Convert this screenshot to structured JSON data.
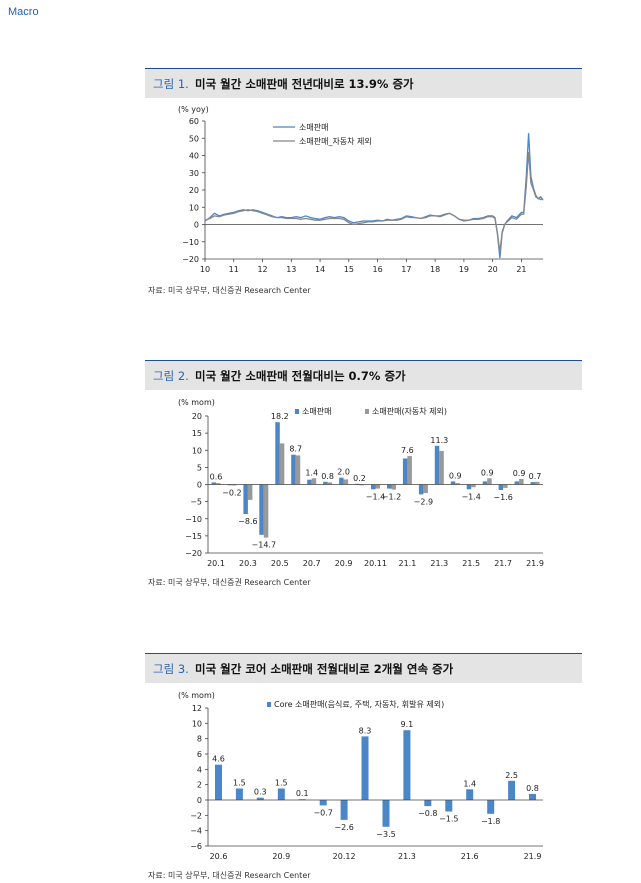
{
  "page": {
    "section": "Macro"
  },
  "figures": [
    {
      "label": "그림 1.",
      "title": "미국 월간 소매판매 전년대비로 13.9% 증가",
      "source": "자료: 미국 상무부, 대신증권 Research Center"
    },
    {
      "label": "그림 2.",
      "title": "미국 월간 소매판매 전월대비는 0.7% 증가",
      "source": "자료: 미국 상무부, 대신증권 Research Center"
    },
    {
      "label": "그림 3.",
      "title": "미국 월간 코어 소매판매 전월대비로 2개월 연속 증가",
      "source": "자료: 미국 상무부, 대신증권 Research Center"
    }
  ],
  "chart_data": [
    {
      "type": "line",
      "unit_label": "(% yoy)",
      "ylim": [
        -20,
        60
      ],
      "yticks": [
        "60",
        "50",
        "40",
        "30",
        "20",
        "10",
        "0",
        "−10",
        "−20"
      ],
      "xlim": [
        10,
        21.75
      ],
      "xticks": [
        "10",
        "11",
        "12",
        "13",
        "14",
        "15",
        "16",
        "17",
        "18",
        "19",
        "20",
        "21"
      ],
      "legend_position": "top-center",
      "series": [
        {
          "name": "소매판매",
          "color": "#4a86c8",
          "points": [
            [
              10.0,
              2
            ],
            [
              10.17,
              4
            ],
            [
              10.33,
              6.5
            ],
            [
              10.5,
              5
            ],
            [
              10.67,
              6
            ],
            [
              10.83,
              6.5
            ],
            [
              11.0,
              7
            ],
            [
              11.17,
              8
            ],
            [
              11.33,
              8.5
            ],
            [
              11.5,
              8
            ],
            [
              11.67,
              8.5
            ],
            [
              11.83,
              8
            ],
            [
              12.0,
              7
            ],
            [
              12.17,
              6
            ],
            [
              12.33,
              5
            ],
            [
              12.5,
              4
            ],
            [
              12.67,
              4.5
            ],
            [
              12.83,
              4
            ],
            [
              13.0,
              4
            ],
            [
              13.17,
              4.5
            ],
            [
              13.33,
              4
            ],
            [
              13.5,
              5
            ],
            [
              13.67,
              4
            ],
            [
              13.83,
              3.5
            ],
            [
              14.0,
              3
            ],
            [
              14.17,
              4
            ],
            [
              14.33,
              4.5
            ],
            [
              14.5,
              4
            ],
            [
              14.67,
              4.5
            ],
            [
              14.83,
              4
            ],
            [
              15.0,
              2
            ],
            [
              15.17,
              1
            ],
            [
              15.33,
              1.5
            ],
            [
              15.5,
              2
            ],
            [
              15.67,
              2
            ],
            [
              15.83,
              2
            ],
            [
              16.0,
              2.5
            ],
            [
              16.17,
              2
            ],
            [
              16.33,
              3
            ],
            [
              16.5,
              2.5
            ],
            [
              16.67,
              3
            ],
            [
              16.83,
              3.5
            ],
            [
              17.0,
              5
            ],
            [
              17.17,
              4.5
            ],
            [
              17.33,
              4
            ],
            [
              17.5,
              3.5
            ],
            [
              17.67,
              4.5
            ],
            [
              17.83,
              5.5
            ],
            [
              18.0,
              5
            ],
            [
              18.17,
              5
            ],
            [
              18.33,
              6
            ],
            [
              18.5,
              6.5
            ],
            [
              18.67,
              5
            ],
            [
              18.83,
              3
            ],
            [
              19.0,
              2
            ],
            [
              19.17,
              2.5
            ],
            [
              19.33,
              3.5
            ],
            [
              19.5,
              3.5
            ],
            [
              19.67,
              4
            ],
            [
              19.83,
              5
            ],
            [
              20.0,
              5
            ],
            [
              20.08,
              4
            ],
            [
              20.17,
              -6
            ],
            [
              20.25,
              -19.5
            ],
            [
              20.33,
              -5
            ],
            [
              20.42,
              0
            ],
            [
              20.5,
              2
            ],
            [
              20.67,
              5
            ],
            [
              20.83,
              4
            ],
            [
              21.0,
              7
            ],
            [
              21.08,
              7
            ],
            [
              21.17,
              28
            ],
            [
              21.25,
              53
            ],
            [
              21.33,
              28
            ],
            [
              21.42,
              21
            ],
            [
              21.5,
              17
            ],
            [
              21.58,
              15
            ],
            [
              21.67,
              16
            ],
            [
              21.75,
              14
            ]
          ]
        },
        {
          "name": "소매판매_자동차 제외",
          "color": "#888888",
          "points": [
            [
              10.0,
              2.5
            ],
            [
              10.17,
              3.5
            ],
            [
              10.33,
              5
            ],
            [
              10.5,
              4.5
            ],
            [
              10.67,
              5.5
            ],
            [
              10.83,
              6
            ],
            [
              11.0,
              6.5
            ],
            [
              11.17,
              7.5
            ],
            [
              11.33,
              8
            ],
            [
              11.5,
              8.5
            ],
            [
              11.67,
              8
            ],
            [
              11.83,
              7.5
            ],
            [
              12.0,
              6.5
            ],
            [
              12.17,
              5.5
            ],
            [
              12.33,
              4.5
            ],
            [
              12.5,
              4
            ],
            [
              12.67,
              4
            ],
            [
              12.83,
              3.5
            ],
            [
              13.0,
              3.5
            ],
            [
              13.17,
              3.5
            ],
            [
              13.33,
              3
            ],
            [
              13.5,
              3.5
            ],
            [
              13.67,
              3
            ],
            [
              13.83,
              2.5
            ],
            [
              14.0,
              2.5
            ],
            [
              14.17,
              3
            ],
            [
              14.33,
              3.5
            ],
            [
              14.5,
              3.5
            ],
            [
              14.67,
              3.5
            ],
            [
              14.83,
              3
            ],
            [
              15.0,
              1
            ],
            [
              15.17,
              0
            ],
            [
              15.33,
              0.5
            ],
            [
              15.5,
              1
            ],
            [
              15.67,
              1.5
            ],
            [
              15.83,
              1.5
            ],
            [
              16.0,
              2
            ],
            [
              16.17,
              2
            ],
            [
              16.33,
              2.5
            ],
            [
              16.5,
              2.5
            ],
            [
              16.67,
              2.5
            ],
            [
              16.83,
              3
            ],
            [
              17.0,
              4.5
            ],
            [
              17.17,
              4
            ],
            [
              17.33,
              4
            ],
            [
              17.5,
              3.5
            ],
            [
              17.67,
              4
            ],
            [
              17.83,
              5
            ],
            [
              18.0,
              5
            ],
            [
              18.17,
              4.5
            ],
            [
              18.33,
              5.5
            ],
            [
              18.5,
              6.5
            ],
            [
              18.67,
              5
            ],
            [
              18.83,
              3
            ],
            [
              19.0,
              2.5
            ],
            [
              19.17,
              2.5
            ],
            [
              19.33,
              3
            ],
            [
              19.5,
              3
            ],
            [
              19.67,
              3.5
            ],
            [
              19.83,
              4.5
            ],
            [
              20.0,
              4.5
            ],
            [
              20.08,
              3.5
            ],
            [
              20.17,
              -5
            ],
            [
              20.25,
              -16
            ],
            [
              20.33,
              -4
            ],
            [
              20.42,
              0
            ],
            [
              20.5,
              1.5
            ],
            [
              20.67,
              4
            ],
            [
              20.83,
              3
            ],
            [
              21.0,
              6
            ],
            [
              21.08,
              6
            ],
            [
              21.17,
              22
            ],
            [
              21.25,
              42
            ],
            [
              21.33,
              24
            ],
            [
              21.42,
              20
            ],
            [
              21.5,
              16
            ],
            [
              21.58,
              15
            ],
            [
              21.67,
              14.5
            ],
            [
              21.75,
              15
            ]
          ]
        }
      ]
    },
    {
      "type": "bar",
      "unit_label": "(% mom)",
      "ylim": [
        -20,
        20
      ],
      "yticks": [
        "20",
        "15",
        "10",
        "5",
        "0",
        "−5",
        "−10",
        "−15",
        "−20"
      ],
      "categories": [
        "20.1",
        "20.2",
        "20.3",
        "20.4",
        "20.5",
        "20.6",
        "20.7",
        "20.8",
        "20.9",
        "20.10",
        "20.11",
        "20.12",
        "21.1",
        "21.2",
        "21.3",
        "21.4",
        "21.5",
        "21.6",
        "21.7",
        "21.8",
        "21.9"
      ],
      "xtick_labels": [
        "20.1",
        "20.3",
        "20.5",
        "20.7",
        "20.9",
        "20.11",
        "21.1",
        "21.3",
        "21.5",
        "21.7",
        "21.9"
      ],
      "legend_position": "top-center",
      "series": [
        {
          "name": "소매판매",
          "color": "#4a86c8",
          "values": [
            0.6,
            -0.2,
            -8.6,
            -14.7,
            18.2,
            8.7,
            1.4,
            0.8,
            2.0,
            0.2,
            -1.4,
            -1.2,
            7.6,
            -2.9,
            11.3,
            0.9,
            -1.4,
            0.9,
            -1.6,
            0.9,
            0.7
          ]
        },
        {
          "name": "소매판매(자동차 제외)",
          "color": "#999999",
          "values": [
            0.4,
            -0.3,
            -4.5,
            -15.5,
            12.0,
            8.5,
            1.8,
            0.6,
            1.5,
            -0.2,
            -1.2,
            -1.5,
            8.3,
            -2.5,
            9.8,
            0.4,
            -0.8,
            1.8,
            -1.0,
            1.6,
            0.8
          ]
        }
      ],
      "data_labels": [
        {
          "i": 0,
          "text": "0.6"
        },
        {
          "i": 1,
          "text": "−0.2"
        },
        {
          "i": 2,
          "text": "−8.6"
        },
        {
          "i": 3,
          "text": "−14.7"
        },
        {
          "i": 4,
          "text": "18.2"
        },
        {
          "i": 5,
          "text": "8.7"
        },
        {
          "i": 6,
          "text": "1.4"
        },
        {
          "i": 7,
          "text": "0.8"
        },
        {
          "i": 8,
          "text": "2.0"
        },
        {
          "i": 9,
          "text": "0.2"
        },
        {
          "i": 10,
          "text": "−1.4"
        },
        {
          "i": 11,
          "text": "−1.2"
        },
        {
          "i": 12,
          "text": "7.6"
        },
        {
          "i": 13,
          "text": "−2.9"
        },
        {
          "i": 14,
          "text": "11.3"
        },
        {
          "i": 15,
          "text": "0.9"
        },
        {
          "i": 16,
          "text": "−1.4"
        },
        {
          "i": 17,
          "text": "0.9"
        },
        {
          "i": 18,
          "text": "−1.6"
        },
        {
          "i": 19,
          "text": "0.9"
        },
        {
          "i": 20,
          "text": "0.7"
        }
      ]
    },
    {
      "type": "bar",
      "unit_label": "(% mom)",
      "ylim": [
        -6,
        12
      ],
      "yticks": [
        "12",
        "10",
        "8",
        "6",
        "4",
        "2",
        "0",
        "−2",
        "−4",
        "−6"
      ],
      "categories": [
        "20.6",
        "20.7",
        "20.8",
        "20.9",
        "20.10",
        "20.11",
        "20.12",
        "21.1",
        "21.2",
        "21.3",
        "21.4",
        "21.5",
        "21.6",
        "21.7",
        "21.8",
        "21.9"
      ],
      "xtick_labels": [
        "20.6",
        "20.9",
        "20.12",
        "21.3",
        "21.6",
        "21.9"
      ],
      "legend_position": "top-center",
      "series": [
        {
          "name": "Core 소매판매(음식료, 주택, 자동차, 휘발유 제외)",
          "color": "#4a86c8",
          "values": [
            4.6,
            1.5,
            0.3,
            1.5,
            0.1,
            -0.7,
            -2.6,
            8.3,
            -3.5,
            9.1,
            -0.8,
            -1.5,
            1.4,
            -1.8,
            2.5,
            0.8
          ]
        }
      ],
      "data_labels": [
        {
          "i": 0,
          "text": "4.6"
        },
        {
          "i": 1,
          "text": "1.5"
        },
        {
          "i": 2,
          "text": "0.3"
        },
        {
          "i": 3,
          "text": "1.5"
        },
        {
          "i": 4,
          "text": "0.1"
        },
        {
          "i": 5,
          "text": "−0.7"
        },
        {
          "i": 6,
          "text": "−2.6"
        },
        {
          "i": 7,
          "text": "8.3"
        },
        {
          "i": 8,
          "text": "−3.5"
        },
        {
          "i": 9,
          "text": "9.1"
        },
        {
          "i": 10,
          "text": "−0.8"
        },
        {
          "i": 11,
          "text": "−1.5"
        },
        {
          "i": 12,
          "text": "1.4"
        },
        {
          "i": 13,
          "text": "−1.8"
        },
        {
          "i": 14,
          "text": "2.5"
        },
        {
          "i": 15,
          "text": "0.8"
        }
      ]
    }
  ]
}
